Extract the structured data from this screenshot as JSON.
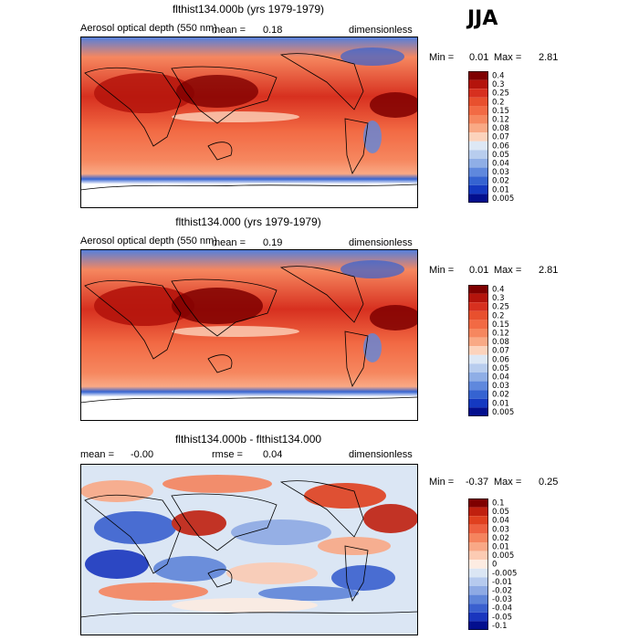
{
  "season": "JJA",
  "panels": [
    {
      "title": "flthist134.000b (yrs 1979-1979)",
      "variable": "Aerosol optical depth (550 nm)",
      "stat_left_label": "mean =",
      "stat_left_value": "0.18",
      "stat_mid_label": "",
      "stat_mid_value": "",
      "units": "dimensionless",
      "min_label": "Min =",
      "min_value": "0.01",
      "max_label": "Max =",
      "max_value": "2.81",
      "legend": [
        "0.4",
        "0.3",
        "0.25",
        "0.2",
        "0.15",
        "0.12",
        "0.08",
        "0.07",
        "0.06",
        "0.05",
        "0.04",
        "0.03",
        "0.02",
        "0.01",
        "0.005"
      ]
    },
    {
      "title": "flthist134.000 (yrs 1979-1979)",
      "variable": "Aerosol optical depth (550 nm)",
      "stat_left_label": "mean =",
      "stat_left_value": "0.19",
      "stat_mid_label": "",
      "stat_mid_value": "",
      "units": "dimensionless",
      "min_label": "Min =",
      "min_value": "0.01",
      "max_label": "Max =",
      "max_value": "2.81",
      "legend": [
        "0.4",
        "0.3",
        "0.25",
        "0.2",
        "0.15",
        "0.12",
        "0.08",
        "0.07",
        "0.06",
        "0.05",
        "0.04",
        "0.03",
        "0.02",
        "0.01",
        "0.005"
      ]
    },
    {
      "title": "flthist134.000b - flthist134.000",
      "variable": "",
      "stat_left_label": "mean =",
      "stat_left_value": "-0.00",
      "stat_mid_label": "rmse =",
      "stat_mid_value": "0.04",
      "units": "dimensionless",
      "min_label": "Min =",
      "min_value": "-0.37",
      "max_label": "Max =",
      "max_value": "0.25",
      "legend": [
        "0.1",
        "0.05",
        "0.04",
        "0.03",
        "0.02",
        "0.01",
        "0.005",
        "0",
        "-0.005",
        "-0.01",
        "-0.02",
        "-0.03",
        "-0.04",
        "-0.05",
        "-0.1"
      ]
    }
  ],
  "colors": {
    "abs_scale": [
      "#7f0000",
      "#b4140c",
      "#d7301f",
      "#e8502e",
      "#f26a44",
      "#f6875f",
      "#f9a985",
      "#fcd3bc",
      "#dde8f5",
      "#b8cdee",
      "#8faee6",
      "#5f88dd",
      "#3563d1",
      "#1439c1",
      "#030f8e"
    ],
    "diff_scale": [
      "#7f0000",
      "#c0200f",
      "#e0401f",
      "#ee6040",
      "#f5845e",
      "#f9a886",
      "#fccbb3",
      "#fdece2",
      "#dbe6f4",
      "#b6caee",
      "#8eaae4",
      "#5f85d9",
      "#3a60cf",
      "#1a36be",
      "#030f8e"
    ]
  },
  "chart_data": [
    {
      "type": "heatmap",
      "title": "flthist134.000b (yrs 1979-1979)",
      "subtitle": "Aerosol optical depth (550 nm)",
      "units": "dimensionless",
      "mean": 0.18,
      "min": 0.01,
      "max": 2.81,
      "levels": [
        0.005,
        0.01,
        0.02,
        0.03,
        0.04,
        0.05,
        0.06,
        0.07,
        0.08,
        0.12,
        0.15,
        0.2,
        0.25,
        0.3,
        0.4
      ],
      "xlim": [
        0,
        360
      ],
      "ylim": [
        -90,
        90
      ]
    },
    {
      "type": "heatmap",
      "title": "flthist134.000 (yrs 1979-1979)",
      "subtitle": "Aerosol optical depth (550 nm)",
      "units": "dimensionless",
      "mean": 0.19,
      "min": 0.01,
      "max": 2.81,
      "levels": [
        0.005,
        0.01,
        0.02,
        0.03,
        0.04,
        0.05,
        0.06,
        0.07,
        0.08,
        0.12,
        0.15,
        0.2,
        0.25,
        0.3,
        0.4
      ],
      "xlim": [
        0,
        360
      ],
      "ylim": [
        -90,
        90
      ]
    },
    {
      "type": "heatmap",
      "title": "flthist134.000b - flthist134.000",
      "units": "dimensionless",
      "mean": -0.0,
      "rmse": 0.04,
      "min": -0.37,
      "max": 0.25,
      "levels": [
        -0.1,
        -0.05,
        -0.04,
        -0.03,
        -0.02,
        -0.01,
        -0.005,
        0,
        0.005,
        0.01,
        0.02,
        0.03,
        0.04,
        0.05,
        0.1
      ],
      "xlim": [
        0,
        360
      ],
      "ylim": [
        -90,
        90
      ]
    }
  ]
}
